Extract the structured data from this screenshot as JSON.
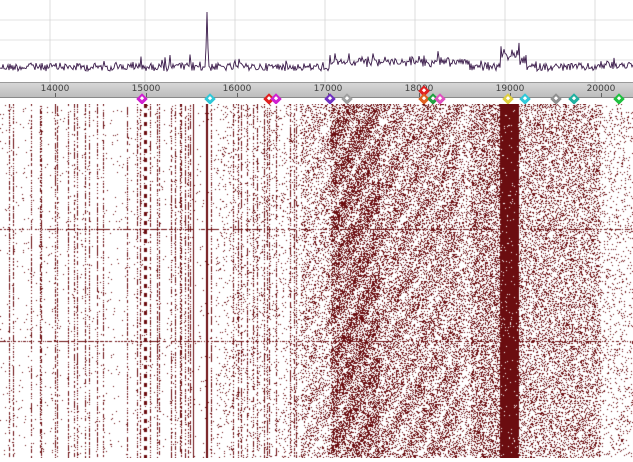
{
  "app": {
    "view": "spectrum-waterfall"
  },
  "ruler": {
    "labels": [
      "14000",
      "15000",
      "16000",
      "17000",
      "18000",
      "19000",
      "20000"
    ],
    "label_values": [
      14000,
      15000,
      16000,
      17000,
      18000,
      19000,
      20000
    ],
    "min_freq": 13400,
    "max_freq": 20350
  },
  "markers": [
    {
      "name": "marker-magenta-1",
      "freq": 14960,
      "color": "#d020d0"
    },
    {
      "name": "marker-cyan-1",
      "freq": 15710,
      "color": "#30c8d8"
    },
    {
      "name": "marker-red-1",
      "freq": 16350,
      "color": "#e02020"
    },
    {
      "name": "marker-magenta-2",
      "freq": 16430,
      "color": "#d020d0"
    },
    {
      "name": "marker-purple-1",
      "freq": 17020,
      "color": "#7030c0"
    },
    {
      "name": "marker-gray-1",
      "freq": 17210,
      "color": "#a0a0a0"
    },
    {
      "name": "marker-red-2",
      "freq": 18050,
      "color": "#e02020"
    },
    {
      "name": "marker-orange-1",
      "freq": 18060,
      "color": "#e06020"
    },
    {
      "name": "marker-green-1",
      "freq": 18150,
      "color": "#20a040"
    },
    {
      "name": "marker-pink-1",
      "freq": 18230,
      "color": "#e050c0"
    },
    {
      "name": "marker-yellow-1",
      "freq": 18980,
      "color": "#e0d040"
    },
    {
      "name": "marker-cyan-2",
      "freq": 19160,
      "color": "#30c8d8"
    },
    {
      "name": "marker-gray-2",
      "freq": 19500,
      "color": "#909090"
    },
    {
      "name": "marker-teal-1",
      "freq": 19700,
      "color": "#20b0a0"
    },
    {
      "name": "marker-green-2",
      "freq": 20200,
      "color": "#20c040"
    }
  ],
  "colors": {
    "trace": "#3a1a4a",
    "waterfall_signal": "#6b0d10",
    "grid": "#c8c8c8",
    "ruler": "#c8c8c8"
  }
}
